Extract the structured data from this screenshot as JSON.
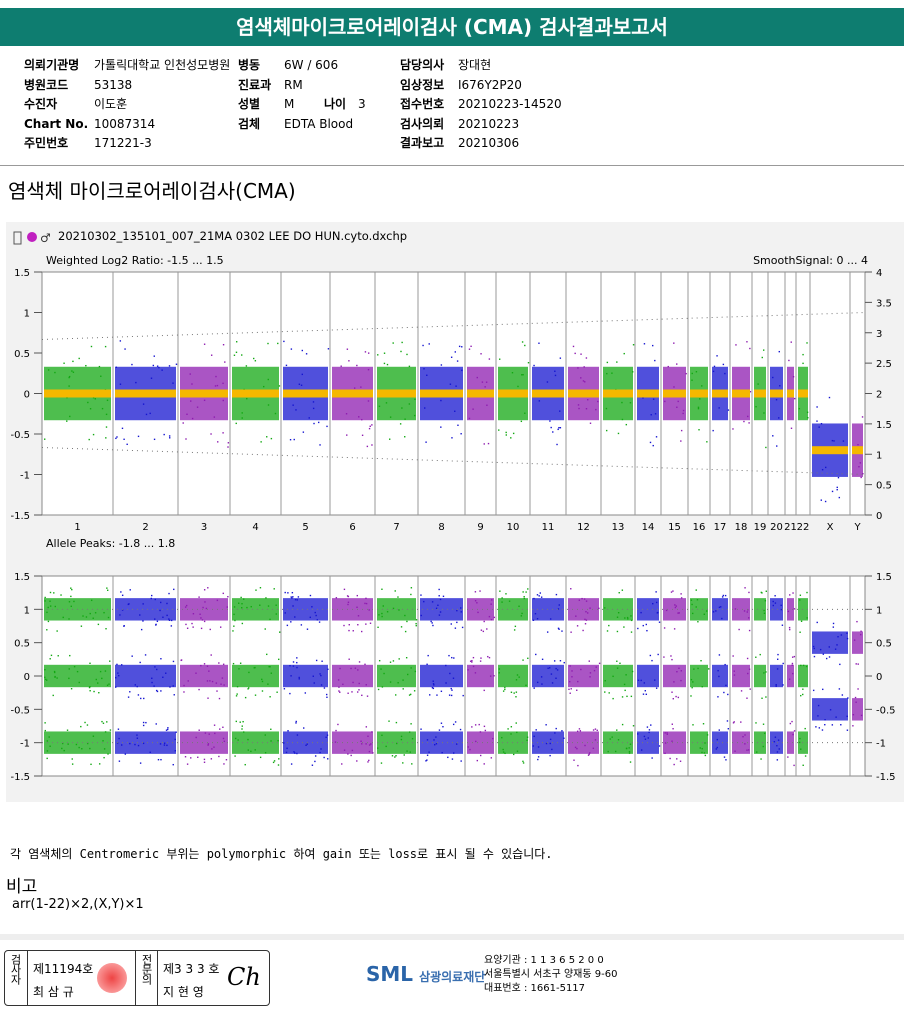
{
  "header": {
    "title": "염색체마이크로어레이검사 (CMA) 검사결과보고서"
  },
  "info": {
    "col1": [
      {
        "label": "의뢰기관명",
        "value": "가톨릭대학교 인천성모병원"
      },
      {
        "label": "병원코드",
        "value": "53138"
      },
      {
        "label": "수진자",
        "value": "이도훈"
      },
      {
        "label": "Chart No.",
        "value": "10087314"
      },
      {
        "label": "주민번호",
        "value": "171221-3"
      }
    ],
    "col2": [
      {
        "label": "병동",
        "value": "6W / 606"
      },
      {
        "label": "진료과",
        "value": "RM"
      },
      {
        "label": "성별",
        "value": "M"
      },
      {
        "label": "검체",
        "value": "EDTA Blood"
      }
    ],
    "age": {
      "label": "나이",
      "value": "3"
    },
    "col3": [
      {
        "label": "담당의사",
        "value": "장대현"
      },
      {
        "label": "임상정보",
        "value": "I676Y2P20"
      },
      {
        "label": "접수번호",
        "value": "20210223-14520"
      },
      {
        "label": "검사의뢰",
        "value": "20210223"
      },
      {
        "label": "결과보고",
        "value": "20210306"
      }
    ]
  },
  "section_title": "염색체 마이크로어레이검사(CMA)",
  "plot": {
    "file": "20210302_135101_007_21MA 0302 LEE DO HUN.cyto.dxchp",
    "top": {
      "label": "Weighted Log2 Ratio: -1.5 ... 1.5",
      "right_label": "SmoothSignal: 0 ... 4",
      "left_ticks": [
        "1.5",
        "1",
        "0.5",
        "0",
        "-0.5",
        "-1",
        "-1.5"
      ],
      "right_ticks": [
        "4",
        "3.5",
        "3",
        "2.5",
        "2",
        "1.5",
        "1",
        "0.5",
        "0"
      ]
    },
    "chromosomes": [
      "1",
      "2",
      "3",
      "4",
      "5",
      "6",
      "7",
      "8",
      "9",
      "10",
      "11",
      "12",
      "13",
      "14",
      "15",
      "16",
      "17",
      "18",
      "19",
      "20",
      "21",
      "22",
      "X",
      "Y"
    ],
    "bottom": {
      "label": "Allele Peaks: -1.8 ... 1.8",
      "left_ticks": [
        "1.5",
        "1",
        "0.5",
        "0",
        "-0.5",
        "-1",
        "-1.5"
      ],
      "right_ticks": [
        "1.5",
        "1",
        "0.5",
        "0",
        "-0.5",
        "-1",
        "-1.5"
      ]
    }
  },
  "note": "각 염색체의 Centromeric 부위는 polymorphic 하여 gain 또는 loss로 표시 될 수 있습니다.",
  "remark": {
    "title": "비고",
    "text": "arr(1-22)×2,(X,Y)×1"
  },
  "footer": {
    "examiner": {
      "role": "검사자",
      "no": "제11194호",
      "name": "최 삼 규"
    },
    "specialist": {
      "role": "전문의",
      "no": "제3 3 3 호",
      "name": "지 현 영"
    },
    "logo": "SML",
    "org": "삼광의료재단",
    "lines": [
      "요양기관 : 1 1 3 6 5 2 0 0",
      "서울특별시 서초구 양재동 9-60",
      "대표번호 : 1661-5117"
    ]
  }
}
